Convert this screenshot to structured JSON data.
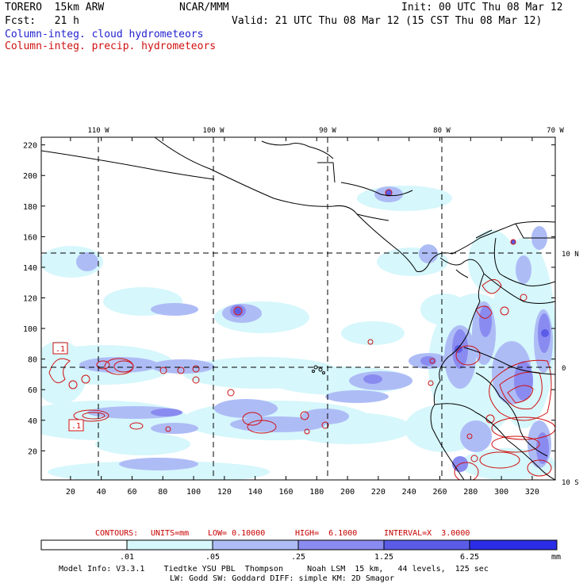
{
  "header": {
    "model": "TORERO  15km ARW",
    "org": "NCAR/MMM",
    "init": "Init: 00 UTC Thu 08 Mar 12",
    "fcst": "Fcst:   21 h",
    "valid": "Valid: 21 UTC Thu 08 Mar 12 (15 CST Thu 08 Mar 12)",
    "field_cloud": "Column-integ. cloud hydrometeors",
    "field_precip": "Column-integ. precip. hydrometeors"
  },
  "colors": {
    "cloud_text": "#1f1fd0",
    "precip_text": "#d01010",
    "fill_levels": [
      "#ffffff",
      "#d6f7fc",
      "#aebcf6",
      "#8a8bf0",
      "#5a5ce8",
      "#2b2de6"
    ]
  },
  "map": {
    "lon_labels": [
      "110 W",
      "100 W",
      "90 W",
      "80 W",
      "70 W"
    ],
    "lat_labels": [
      "10 N",
      "0",
      "10 S"
    ],
    "x_ticks": [
      "20",
      "40",
      "60",
      "80",
      "100",
      "120",
      "140",
      "160",
      "180",
      "200",
      "220",
      "240",
      "260",
      "280",
      "300",
      "320"
    ],
    "y_ticks": [
      "20",
      "40",
      "60",
      "80",
      "100",
      "120",
      "140",
      "160",
      "180",
      "200",
      "220"
    ],
    "contour_labels": [
      ".1",
      ".1"
    ],
    "x_range": [
      1,
      335
    ],
    "y_range": [
      1,
      225
    ]
  },
  "contour_info": {
    "label": "CONTOURS:",
    "units": "UNITS=mm",
    "low": "LOW= 0.10000",
    "high": "HIGH=  6.1000",
    "interval": "INTERVAL=X  3.0000"
  },
  "colorbar": {
    "ticks": [
      ".01",
      ".05",
      ".25",
      "1.25",
      "6.25"
    ],
    "unit": "mm"
  },
  "model_info": {
    "line1": "Model Info: V3.3.1    Tiedtke YSU PBL  Thompson     Noah LSM  15 km,   44 levels,  125 sec",
    "line2": "LW: Godd SW: Goddard DIFF: simple KM: 2D Smagor"
  }
}
